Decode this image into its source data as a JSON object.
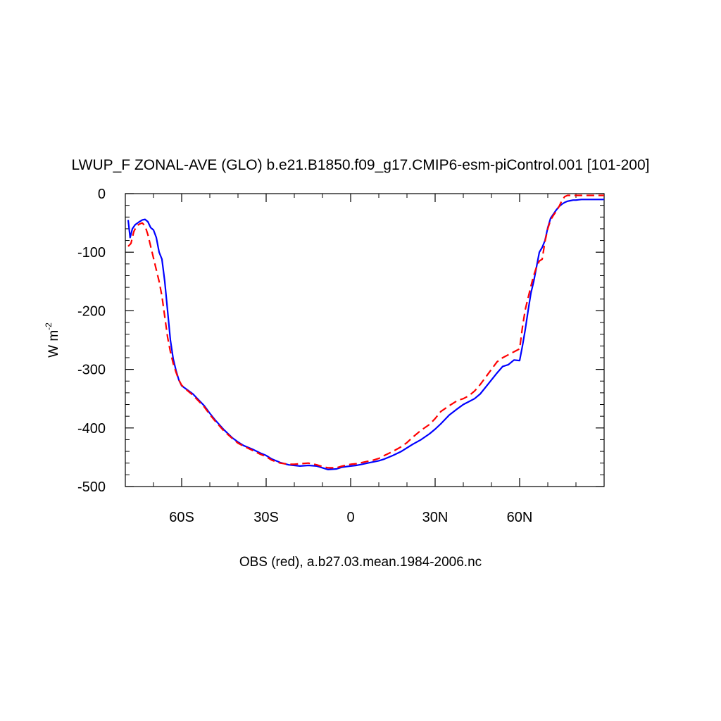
{
  "chart_data": {
    "type": "line",
    "title": "LWUP_F ZONAL-AVE (GLO) b.e21.B1850.f09_g17.CMIP6-esm-piControl.001 [101-200]",
    "xlabel": "OBS (red), a.b27.03.mean.1984-2006.nc",
    "ylabel": "W m",
    "ylabel_superscript": "-2",
    "xlim": [
      -80,
      90
    ],
    "ylim": [
      -500,
      0
    ],
    "x_ticks": [
      {
        "value": -60,
        "label": "60S"
      },
      {
        "value": -30,
        "label": "30S"
      },
      {
        "value": 0,
        "label": "0"
      },
      {
        "value": 30,
        "label": "30N"
      },
      {
        "value": 60,
        "label": "60N"
      }
    ],
    "y_ticks": [
      {
        "value": 0,
        "label": "0"
      },
      {
        "value": -100,
        "label": "-100"
      },
      {
        "value": -200,
        "label": "-200"
      },
      {
        "value": -300,
        "label": "-300"
      },
      {
        "value": -400,
        "label": "-400"
      },
      {
        "value": -500,
        "label": "-500"
      }
    ],
    "series": [
      {
        "color": "#0000ff",
        "dash": "solid",
        "x": [
          -79,
          -78.3,
          -77.5,
          -76.5,
          -75,
          -74,
          -73,
          -72,
          -71,
          -70,
          -69,
          -68,
          -67,
          -66,
          -65,
          -64,
          -63,
          -62,
          -61,
          -60,
          -58,
          -56,
          -54,
          -52,
          -50,
          -48,
          -45,
          -42,
          -40,
          -38,
          -35,
          -32,
          -30,
          -28,
          -25,
          -22,
          -20,
          -18,
          -15,
          -12,
          -10,
          -8,
          -5,
          -3,
          0,
          2,
          4,
          6,
          8,
          10,
          12,
          15,
          18,
          20,
          22,
          25,
          28,
          30,
          32,
          35,
          38,
          40,
          42,
          44,
          46,
          48,
          50,
          52,
          54,
          56,
          58,
          60,
          61,
          62,
          63,
          64,
          64.5,
          65,
          66,
          67,
          68,
          69,
          70,
          71,
          72,
          73,
          74,
          75,
          76,
          77,
          78,
          79,
          80,
          81,
          82,
          83,
          84,
          86,
          88,
          90
        ],
        "y": [
          -45,
          -75,
          -60,
          -53,
          -48,
          -45,
          -44,
          -48,
          -58,
          -62,
          -75,
          -100,
          -112,
          -150,
          -200,
          -250,
          -282,
          -302,
          -318,
          -328,
          -335,
          -342,
          -352,
          -362,
          -375,
          -387,
          -403,
          -417,
          -424,
          -430,
          -436,
          -443,
          -447,
          -453,
          -459,
          -463,
          -464,
          -465,
          -464,
          -465,
          -468,
          -471,
          -470,
          -467,
          -465,
          -464,
          -462,
          -460,
          -458,
          -456,
          -453,
          -447,
          -440,
          -434,
          -428,
          -420,
          -410,
          -402,
          -393,
          -378,
          -367,
          -360,
          -355,
          -350,
          -342,
          -330,
          -318,
          -306,
          -295,
          -292,
          -284,
          -285,
          -260,
          -232,
          -200,
          -170,
          -160,
          -150,
          -125,
          -100,
          -92,
          -80,
          -58,
          -42,
          -35,
          -28,
          -22,
          -18,
          -15,
          -13,
          -12,
          -11,
          -11,
          -10.5,
          -10,
          -10,
          -10,
          -10,
          -10,
          -10
        ]
      },
      {
        "color": "#ff0000",
        "dash": "dashed",
        "x": [
          -79,
          -78,
          -77,
          -76,
          -75,
          -74,
          -73,
          -72,
          -71,
          -70,
          -69,
          -68,
          -67,
          -66,
          -65,
          -64,
          -63,
          -62,
          -61,
          -60,
          -58,
          -56,
          -54,
          -52,
          -50,
          -48,
          -45,
          -42,
          -40,
          -38,
          -35,
          -32,
          -30,
          -28,
          -25,
          -22,
          -20,
          -18,
          -15,
          -12,
          -10,
          -8,
          -5,
          -3,
          0,
          2,
          4,
          6,
          8,
          10,
          12,
          15,
          18,
          20,
          22,
          25,
          28,
          30,
          32,
          35,
          38,
          40,
          42,
          44,
          46,
          48,
          50,
          52,
          54,
          56,
          58,
          60,
          61,
          62,
          63,
          64,
          65,
          66,
          67,
          68,
          69,
          70,
          71,
          72,
          73,
          74,
          75,
          76,
          77,
          78,
          79,
          80,
          81,
          82,
          83,
          84,
          86,
          88,
          90
        ],
        "y": [
          -90,
          -85,
          -65,
          -55,
          -52,
          -50,
          -55,
          -70,
          -90,
          -110,
          -130,
          -150,
          -175,
          -210,
          -245,
          -270,
          -290,
          -305,
          -318,
          -327,
          -336,
          -344,
          -354,
          -364,
          -377,
          -389,
          -405,
          -418,
          -426,
          -431,
          -438,
          -445,
          -449,
          -455,
          -460,
          -462,
          -462,
          -461,
          -460,
          -463,
          -466,
          -468,
          -468,
          -465,
          -462,
          -461,
          -459,
          -457,
          -455,
          -452,
          -447,
          -440,
          -432,
          -425,
          -416,
          -404,
          -394,
          -384,
          -372,
          -362,
          -353,
          -350,
          -345,
          -337,
          -326,
          -313,
          -300,
          -287,
          -280,
          -275,
          -270,
          -265,
          -228,
          -198,
          -178,
          -158,
          -140,
          -125,
          -115,
          -112,
          -82,
          -60,
          -45,
          -37,
          -30,
          -22,
          -12,
          -5,
          -3,
          -3,
          -3,
          -3,
          -3,
          -3,
          -3,
          -3,
          -3,
          -3,
          -3
        ]
      }
    ]
  }
}
